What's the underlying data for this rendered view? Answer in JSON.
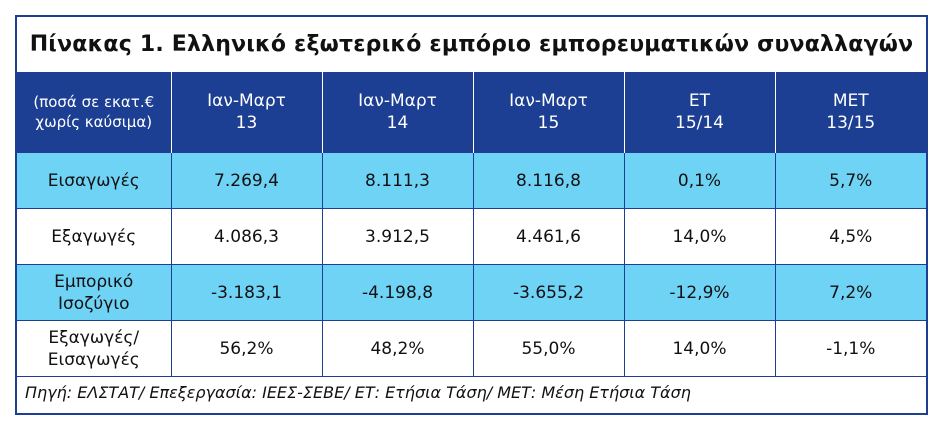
{
  "title": "Πίνακας 1. Ελληνικό εξωτερικό εμπόριο εμπορευματικών συναλλαγών",
  "header": {
    "col0_line1": "(ποσά σε εκατ.€",
    "col0_line2": "χωρίς καύσιμα)",
    "cols": [
      {
        "line1": "Ιαν-Μαρτ",
        "line2": "13"
      },
      {
        "line1": "Ιαν-Μαρτ",
        "line2": "14"
      },
      {
        "line1": "Ιαν-Μαρτ",
        "line2": "15"
      },
      {
        "line1": "ΕΤ",
        "line2": "15/14"
      },
      {
        "line1": "ΜΕΤ",
        "line2": "13/15"
      }
    ]
  },
  "rows": [
    {
      "label_line1": "Εισαγωγές",
      "label_line2": "",
      "values": [
        "7.269,4",
        "8.111,3",
        "8.116,8",
        "0,1%",
        "5,7%"
      ]
    },
    {
      "label_line1": "Εξαγωγές",
      "label_line2": "",
      "values": [
        "4.086,3",
        "3.912,5",
        "4.461,6",
        "14,0%",
        "4,5%"
      ]
    },
    {
      "label_line1": "Εμπορικό",
      "label_line2": "Ισοζύγιο",
      "values": [
        "-3.183,1",
        "-4.198,8",
        "-3.655,2",
        "-12,9%",
        "7,2%"
      ]
    },
    {
      "label_line1": "Εξαγωγές/",
      "label_line2": "Εισαγωγές",
      "values": [
        "56,2%",
        "48,2%",
        "55,0%",
        "14,0%",
        "-1,1%"
      ]
    }
  ],
  "source": "Πηγή: ΕΛΣΤΑΤ/ Επεξεργασία: ΙΕΕΣ-ΣΕΒΕ/ ΕΤ: Ετήσια Τάση/ ΜΕΤ: Μέση Ετήσια Τάση",
  "colors": {
    "header_bg": "#1c3f94",
    "highlight_row": "#6fd3f5",
    "border": "#1c3f94"
  }
}
